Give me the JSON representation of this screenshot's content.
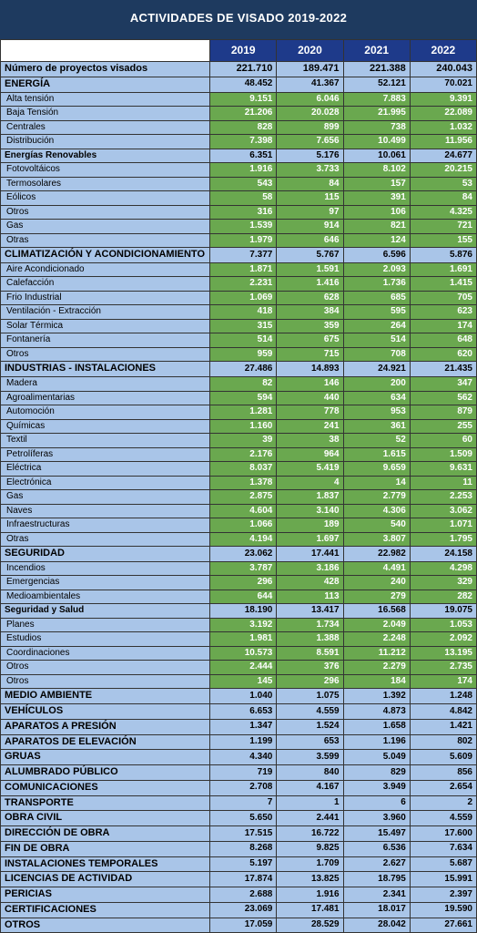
{
  "title": "ACTIVIDADES DE VISADO 2019-2022",
  "years": [
    "2019",
    "2020",
    "2021",
    "2022"
  ],
  "rows": [
    {
      "t": "total",
      "label": "Número de proyectos visados",
      "v": [
        "221.710",
        "189.471",
        "221.388",
        "240.043"
      ]
    },
    {
      "t": "cat",
      "label": "ENERGÍA",
      "v": [
        "48.452",
        "41.367",
        "52.121",
        "70.021"
      ]
    },
    {
      "t": "item",
      "label": "Alta tensión",
      "v": [
        "9.151",
        "6.046",
        "7.883",
        "9.391"
      ]
    },
    {
      "t": "item",
      "label": "Baja Tensión",
      "v": [
        "21.206",
        "20.028",
        "21.995",
        "22.089"
      ]
    },
    {
      "t": "item",
      "label": "Centrales",
      "v": [
        "828",
        "899",
        "738",
        "1.032"
      ]
    },
    {
      "t": "item",
      "label": "Distribución",
      "v": [
        "7.398",
        "7.656",
        "10.499",
        "11.956"
      ]
    },
    {
      "t": "subcat",
      "label": "Energías Renovables",
      "v": [
        "6.351",
        "5.176",
        "10.061",
        "24.677"
      ]
    },
    {
      "t": "item",
      "label": "Fotovoltáicos",
      "v": [
        "1.916",
        "3.733",
        "8.102",
        "20.215"
      ]
    },
    {
      "t": "item",
      "label": "Termosolares",
      "v": [
        "543",
        "84",
        "157",
        "53"
      ]
    },
    {
      "t": "item",
      "label": "Eólicos",
      "v": [
        "58",
        "115",
        "391",
        "84"
      ]
    },
    {
      "t": "item",
      "label": "Otros",
      "v": [
        "316",
        "97",
        "106",
        "4.325"
      ]
    },
    {
      "t": "item",
      "label": "Gas",
      "v": [
        "1.539",
        "914",
        "821",
        "721"
      ]
    },
    {
      "t": "item",
      "label": "Otras",
      "v": [
        "1.979",
        "646",
        "124",
        "155"
      ]
    },
    {
      "t": "cat",
      "label": "CLIMATIZACIÓN Y ACONDICIONAMIENTO",
      "v": [
        "7.377",
        "5.767",
        "6.596",
        "5.876"
      ]
    },
    {
      "t": "item",
      "label": "Aire Acondicionado",
      "v": [
        "1.871",
        "1.591",
        "2.093",
        "1.691"
      ]
    },
    {
      "t": "item",
      "label": "Calefacción",
      "v": [
        "2.231",
        "1.416",
        "1.736",
        "1.415"
      ]
    },
    {
      "t": "item",
      "label": "Frio Industrial",
      "v": [
        "1.069",
        "628",
        "685",
        "705"
      ]
    },
    {
      "t": "item",
      "label": "Ventilación - Extracción",
      "v": [
        "418",
        "384",
        "595",
        "623"
      ]
    },
    {
      "t": "item",
      "label": "Solar Térmica",
      "v": [
        "315",
        "359",
        "264",
        "174"
      ]
    },
    {
      "t": "item",
      "label": "Fontanería",
      "v": [
        "514",
        "675",
        "514",
        "648"
      ]
    },
    {
      "t": "item",
      "label": "Otros",
      "v": [
        "959",
        "715",
        "708",
        "620"
      ]
    },
    {
      "t": "cat",
      "label": "INDUSTRIAS - INSTALACIONES",
      "v": [
        "27.486",
        "14.893",
        "24.921",
        "21.435"
      ]
    },
    {
      "t": "item",
      "label": "Madera",
      "v": [
        "82",
        "146",
        "200",
        "347"
      ]
    },
    {
      "t": "item",
      "label": "Agroalimentarias",
      "v": [
        "594",
        "440",
        "634",
        "562"
      ]
    },
    {
      "t": "item",
      "label": "Automoción",
      "v": [
        "1.281",
        "778",
        "953",
        "879"
      ]
    },
    {
      "t": "item",
      "label": "Químicas",
      "v": [
        "1.160",
        "241",
        "361",
        "255"
      ]
    },
    {
      "t": "item",
      "label": "Textil",
      "v": [
        "39",
        "38",
        "52",
        "60"
      ]
    },
    {
      "t": "item",
      "label": "Petrolíferas",
      "v": [
        "2.176",
        "964",
        "1.615",
        "1.509"
      ]
    },
    {
      "t": "item",
      "label": "Eléctrica",
      "v": [
        "8.037",
        "5.419",
        "9.659",
        "9.631"
      ]
    },
    {
      "t": "item",
      "label": "Electrónica",
      "v": [
        "1.378",
        "4",
        "14",
        "11"
      ]
    },
    {
      "t": "item",
      "label": "Gas",
      "v": [
        "2.875",
        "1.837",
        "2.779",
        "2.253"
      ]
    },
    {
      "t": "item",
      "label": "Naves",
      "v": [
        "4.604",
        "3.140",
        "4.306",
        "3.062"
      ]
    },
    {
      "t": "item",
      "label": "Infraestructuras",
      "v": [
        "1.066",
        "189",
        "540",
        "1.071"
      ]
    },
    {
      "t": "item",
      "label": "Otras",
      "v": [
        "4.194",
        "1.697",
        "3.807",
        "1.795"
      ]
    },
    {
      "t": "cat",
      "label": "SEGURIDAD",
      "v": [
        "23.062",
        "17.441",
        "22.982",
        "24.158"
      ]
    },
    {
      "t": "item",
      "label": "Incendios",
      "v": [
        "3.787",
        "3.186",
        "4.491",
        "4.298"
      ]
    },
    {
      "t": "item",
      "label": "Emergencias",
      "v": [
        "296",
        "428",
        "240",
        "329"
      ]
    },
    {
      "t": "item",
      "label": "Medioambientales",
      "v": [
        "644",
        "113",
        "279",
        "282"
      ]
    },
    {
      "t": "subcat",
      "label": "Seguridad y Salud",
      "v": [
        "18.190",
        "13.417",
        "16.568",
        "19.075"
      ]
    },
    {
      "t": "item",
      "label": "Planes",
      "v": [
        "3.192",
        "1.734",
        "2.049",
        "1.053"
      ]
    },
    {
      "t": "item",
      "label": "Estudios",
      "v": [
        "1.981",
        "1.388",
        "2.248",
        "2.092"
      ]
    },
    {
      "t": "item",
      "label": "Coordinaciones",
      "v": [
        "10.573",
        "8.591",
        "11.212",
        "13.195"
      ]
    },
    {
      "t": "item",
      "label": "Otros",
      "v": [
        "2.444",
        "376",
        "2.279",
        "2.735"
      ]
    },
    {
      "t": "item",
      "label": "Otros",
      "v": [
        "145",
        "296",
        "184",
        "174"
      ]
    },
    {
      "t": "simple",
      "label": "MEDIO AMBIENTE",
      "v": [
        "1.040",
        "1.075",
        "1.392",
        "1.248"
      ]
    },
    {
      "t": "simple",
      "label": "VEHÍCULOS",
      "v": [
        "6.653",
        "4.559",
        "4.873",
        "4.842"
      ]
    },
    {
      "t": "simple",
      "label": "APARATOS A PRESIÓN",
      "v": [
        "1.347",
        "1.524",
        "1.658",
        "1.421"
      ]
    },
    {
      "t": "simple",
      "label": "APARATOS DE ELEVACIÓN",
      "v": [
        "1.199",
        "653",
        "1.196",
        "802"
      ]
    },
    {
      "t": "simple",
      "label": "GRUAS",
      "v": [
        "4.340",
        "3.599",
        "5.049",
        "5.609"
      ]
    },
    {
      "t": "simple",
      "label": "ALUMBRADO PÚBLICO",
      "v": [
        "719",
        "840",
        "829",
        "856"
      ]
    },
    {
      "t": "simple",
      "label": "COMUNICACIONES",
      "v": [
        "2.708",
        "4.167",
        "3.949",
        "2.654"
      ]
    },
    {
      "t": "simple",
      "label": "TRANSPORTE",
      "v": [
        "7",
        "1",
        "6",
        "2"
      ]
    },
    {
      "t": "simple",
      "label": "OBRA CIVIL",
      "v": [
        "5.650",
        "2.441",
        "3.960",
        "4.559"
      ]
    },
    {
      "t": "simple",
      "label": "DIRECCIÓN DE OBRA",
      "v": [
        "17.515",
        "16.722",
        "15.497",
        "17.600"
      ]
    },
    {
      "t": "simple",
      "label": "FIN DE OBRA",
      "v": [
        "8.268",
        "9.825",
        "6.536",
        "7.634"
      ]
    },
    {
      "t": "simple",
      "label": "INSTALACIONES TEMPORALES",
      "v": [
        "5.197",
        "1.709",
        "2.627",
        "5.687"
      ]
    },
    {
      "t": "simple",
      "label": "LICENCIAS DE ACTIVIDAD",
      "v": [
        "17.874",
        "13.825",
        "18.795",
        "15.991"
      ]
    },
    {
      "t": "simple",
      "label": "PERICIAS",
      "v": [
        "2.688",
        "1.916",
        "2.341",
        "2.397"
      ]
    },
    {
      "t": "simple",
      "label": "CERTIFICACIONES",
      "v": [
        "23.069",
        "17.481",
        "18.017",
        "19.590"
      ]
    },
    {
      "t": "simple",
      "label": "OTROS",
      "v": [
        "17.059",
        "28.529",
        "28.042",
        "27.661"
      ]
    }
  ],
  "colors": {
    "page_bg": "#1e3a5f",
    "header_bg": "#1e3a8a",
    "blue_cell": "#a9c5e8",
    "green_cell": "#6aa84f",
    "border": "#333333",
    "white": "#ffffff"
  },
  "col_widths": [
    "44%",
    "14%",
    "14%",
    "14%",
    "14%"
  ]
}
